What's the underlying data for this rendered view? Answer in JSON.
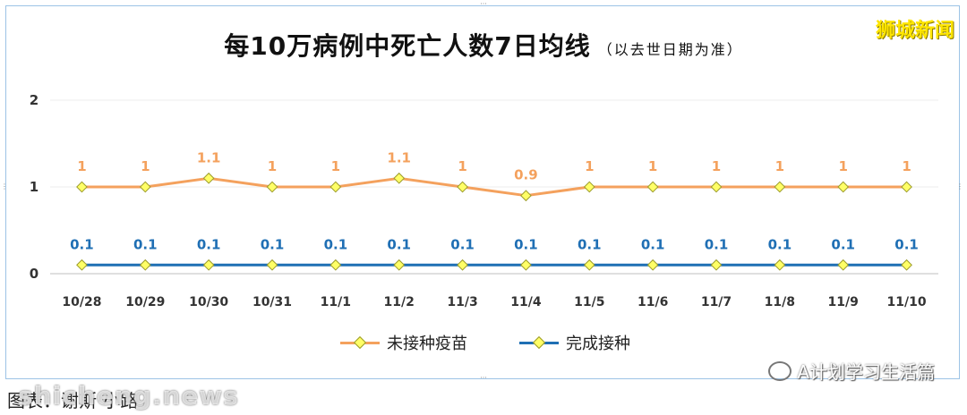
{
  "header": {
    "title": "每10万病例中死亡人数7日均线",
    "subtitle": "（以去世日期为准）",
    "logo_text": "狮城新闻"
  },
  "chart_data": {
    "type": "line",
    "title": "每10万病例中死亡人数7日均线",
    "subtitle": "（以去世日期为准）",
    "categories": [
      "10/28",
      "10/29",
      "10/30",
      "10/31",
      "11/1",
      "11/2",
      "11/3",
      "11/4",
      "11/5",
      "11/6",
      "11/7",
      "11/8",
      "11/9",
      "11/10"
    ],
    "y_ticks": [
      "0",
      "1",
      "2"
    ],
    "ylim": [
      0,
      2
    ],
    "grid": true,
    "legend_position": "bottom",
    "series": [
      {
        "name": "未接种疫苗",
        "color": "#f4a15d",
        "values": [
          1,
          1,
          1.1,
          1,
          1,
          1.1,
          1,
          0.9,
          1,
          1,
          1,
          1,
          1,
          1
        ],
        "labels": [
          "1",
          "1",
          "1.1",
          "1",
          "1",
          "1.1",
          "1",
          "0.9",
          "1",
          "1",
          "1",
          "1",
          "1",
          "1"
        ]
      },
      {
        "name": "完成接种",
        "color": "#1f6fb4",
        "values": [
          0.1,
          0.1,
          0.1,
          0.1,
          0.1,
          0.1,
          0.1,
          0.1,
          0.1,
          0.1,
          0.1,
          0.1,
          0.1,
          0.1
        ],
        "labels": [
          "0.1",
          "0.1",
          "0.1",
          "0.1",
          "0.1",
          "0.1",
          "0.1",
          "0.1",
          "0.1",
          "0.1",
          "0.1",
          "0.1",
          "0.1",
          "0.1"
        ]
      }
    ],
    "marker_color": "#ffff66"
  },
  "footer": {
    "wechat_account": "A计划学习生活篇",
    "caption": "图表：谢斯·小路",
    "site_watermark": "shicheng.news"
  }
}
